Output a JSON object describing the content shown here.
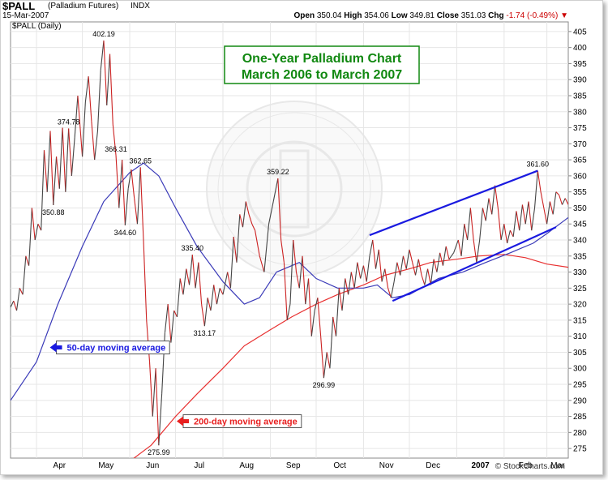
{
  "header": {
    "symbol": "$PALL",
    "description": "(Palladium Futures)",
    "exchange": "INDX",
    "date": "15-Mar-2007",
    "open_label": "Open",
    "open": "350.04",
    "high_label": "High",
    "high": "354.06",
    "low_label": "Low",
    "low": "349.81",
    "close_label": "Close",
    "close": "351.03",
    "chg_label": "Chg",
    "chg": "-1.74 (-0.49%)",
    "chg_color": "#cc0000"
  },
  "colors": {
    "price": "#cc2222",
    "price_up": "#444444",
    "ma50": "#3a3ab8",
    "ma200": "#e83030",
    "trend": "#1a1ae0",
    "title_text": "#118811",
    "title_border": "#118811"
  },
  "chart_data": {
    "type": "line",
    "plot_label": "$PALL (Daily)",
    "title_lines": [
      "One-Year Palladium Chart",
      "March 2006 to March 2007"
    ],
    "watermark": "© StockCharts.com",
    "x_labels": [
      "Apr",
      "May",
      "Jun",
      "Jul",
      "Aug",
      "Sep",
      "Oct",
      "Nov",
      "Dec",
      "2007",
      "Feb",
      "Mar"
    ],
    "x_labels_bold": [
      "2007"
    ],
    "y_ticks": [
      275,
      280,
      285,
      290,
      295,
      300,
      305,
      310,
      315,
      320,
      325,
      330,
      335,
      340,
      345,
      350,
      355,
      360,
      365,
      370,
      375,
      380,
      385,
      390,
      395,
      400,
      405
    ],
    "ylim": [
      272,
      408
    ],
    "x_range": [
      "2006-03-15",
      "2007-03-15"
    ],
    "grid": true,
    "price_path": [
      [
        "2006-03-15",
        319
      ],
      [
        "2006-03-17",
        321
      ],
      [
        "2006-03-19",
        318
      ],
      [
        "2006-03-21",
        325
      ],
      [
        "2006-03-23",
        323
      ],
      [
        "2006-03-25",
        335
      ],
      [
        "2006-03-27",
        332
      ],
      [
        "2006-03-29",
        350
      ],
      [
        "2006-03-31",
        340
      ],
      [
        "2006-04-02",
        345
      ],
      [
        "2006-04-04",
        343
      ],
      [
        "2006-04-06",
        368
      ],
      [
        "2006-04-08",
        355
      ],
      [
        "2006-04-10",
        374
      ],
      [
        "2006-04-12",
        350.88
      ],
      [
        "2006-04-14",
        366
      ],
      [
        "2006-04-16",
        356
      ],
      [
        "2006-04-18",
        375
      ],
      [
        "2006-04-20",
        355
      ],
      [
        "2006-04-22",
        374.78
      ],
      [
        "2006-04-24",
        360
      ],
      [
        "2006-04-26",
        372
      ],
      [
        "2006-04-28",
        385
      ],
      [
        "2006-05-01",
        366
      ],
      [
        "2006-05-03",
        383
      ],
      [
        "2006-05-05",
        391
      ],
      [
        "2006-05-07",
        377
      ],
      [
        "2006-05-09",
        365
      ],
      [
        "2006-05-11",
        374
      ],
      [
        "2006-05-13",
        393
      ],
      [
        "2006-05-15",
        402.19
      ],
      [
        "2006-05-17",
        382
      ],
      [
        "2006-05-19",
        398
      ],
      [
        "2006-05-21",
        376
      ],
      [
        "2006-05-23",
        366.31
      ],
      [
        "2006-05-25",
        350
      ],
      [
        "2006-05-27",
        365
      ],
      [
        "2006-05-29",
        344.6
      ],
      [
        "2006-05-31",
        356
      ],
      [
        "2006-06-02",
        362
      ],
      [
        "2006-06-04",
        353
      ],
      [
        "2006-06-06",
        345
      ],
      [
        "2006-06-08",
        362.65
      ],
      [
        "2006-06-10",
        340
      ],
      [
        "2006-06-12",
        315
      ],
      [
        "2006-06-14",
        302
      ],
      [
        "2006-06-16",
        285
      ],
      [
        "2006-06-18",
        300
      ],
      [
        "2006-06-20",
        275.99
      ],
      [
        "2006-06-22",
        292
      ],
      [
        "2006-06-24",
        311
      ],
      [
        "2006-06-26",
        320
      ],
      [
        "2006-06-28",
        308
      ],
      [
        "2006-06-30",
        318
      ],
      [
        "2006-07-02",
        316
      ],
      [
        "2006-07-04",
        328
      ],
      [
        "2006-07-06",
        323
      ],
      [
        "2006-07-08",
        331
      ],
      [
        "2006-07-10",
        326
      ],
      [
        "2006-07-12",
        335.4
      ],
      [
        "2006-07-14",
        325
      ],
      [
        "2006-07-16",
        333
      ],
      [
        "2006-07-18",
        320
      ],
      [
        "2006-07-20",
        313.17
      ],
      [
        "2006-07-22",
        322
      ],
      [
        "2006-07-24",
        318
      ],
      [
        "2006-07-26",
        326
      ],
      [
        "2006-07-28",
        320
      ],
      [
        "2006-07-30",
        325
      ],
      [
        "2006-08-01",
        323
      ],
      [
        "2006-08-04",
        330
      ],
      [
        "2006-08-06",
        325
      ],
      [
        "2006-08-08",
        341
      ],
      [
        "2006-08-10",
        333
      ],
      [
        "2006-08-12",
        348
      ],
      [
        "2006-08-14",
        344
      ],
      [
        "2006-08-16",
        352
      ],
      [
        "2006-08-18",
        348
      ],
      [
        "2006-08-20",
        345
      ],
      [
        "2006-08-22",
        343
      ],
      [
        "2006-08-25",
        335
      ],
      [
        "2006-08-28",
        330
      ],
      [
        "2006-08-31",
        345
      ],
      [
        "2006-09-03",
        352
      ],
      [
        "2006-09-06",
        359.22
      ],
      [
        "2006-09-08",
        340
      ],
      [
        "2006-09-10",
        333
      ],
      [
        "2006-09-12",
        315
      ],
      [
        "2006-09-14",
        320
      ],
      [
        "2006-09-16",
        340
      ],
      [
        "2006-09-18",
        330
      ],
      [
        "2006-09-20",
        325
      ],
      [
        "2006-09-22",
        335
      ],
      [
        "2006-09-24",
        320
      ],
      [
        "2006-09-26",
        328
      ],
      [
        "2006-09-28",
        310
      ],
      [
        "2006-09-30",
        318
      ],
      [
        "2006-10-02",
        322
      ],
      [
        "2006-10-04",
        310
      ],
      [
        "2006-10-06",
        296.99
      ],
      [
        "2006-10-08",
        305
      ],
      [
        "2006-10-10",
        300
      ],
      [
        "2006-10-12",
        316
      ],
      [
        "2006-10-14",
        310
      ],
      [
        "2006-10-16",
        325
      ],
      [
        "2006-10-18",
        318
      ],
      [
        "2006-10-20",
        328
      ],
      [
        "2006-10-22",
        323
      ],
      [
        "2006-10-24",
        330
      ],
      [
        "2006-10-26",
        325
      ],
      [
        "2006-10-28",
        333
      ],
      [
        "2006-10-30",
        328
      ],
      [
        "2006-11-01",
        332
      ],
      [
        "2006-11-03",
        327
      ],
      [
        "2006-11-05",
        335
      ],
      [
        "2006-11-07",
        340
      ],
      [
        "2006-11-09",
        331
      ],
      [
        "2006-11-11",
        337
      ],
      [
        "2006-11-13",
        327
      ],
      [
        "2006-11-15",
        331
      ],
      [
        "2006-11-17",
        325
      ],
      [
        "2006-11-19",
        322
      ],
      [
        "2006-11-21",
        327
      ],
      [
        "2006-11-23",
        333
      ],
      [
        "2006-11-25",
        329
      ],
      [
        "2006-11-27",
        335
      ],
      [
        "2006-11-29",
        331
      ],
      [
        "2006-12-01",
        337
      ],
      [
        "2006-12-03",
        333
      ],
      [
        "2006-12-05",
        329
      ],
      [
        "2006-12-07",
        334
      ],
      [
        "2006-12-09",
        329
      ],
      [
        "2006-12-11",
        326
      ],
      [
        "2006-12-13",
        331
      ],
      [
        "2006-12-15",
        326
      ],
      [
        "2006-12-17",
        334
      ],
      [
        "2006-12-19",
        330
      ],
      [
        "2006-12-21",
        336
      ],
      [
        "2006-12-23",
        332
      ],
      [
        "2006-12-25",
        338
      ],
      [
        "2006-12-27",
        334
      ],
      [
        "2006-12-30",
        336
      ],
      [
        "2007-01-02",
        340
      ],
      [
        "2007-01-04",
        335
      ],
      [
        "2007-01-06",
        345
      ],
      [
        "2007-01-08",
        340
      ],
      [
        "2007-01-10",
        350
      ],
      [
        "2007-01-12",
        340
      ],
      [
        "2007-01-14",
        333
      ],
      [
        "2007-01-16",
        340
      ],
      [
        "2007-01-18",
        350
      ],
      [
        "2007-01-20",
        346
      ],
      [
        "2007-01-22",
        353
      ],
      [
        "2007-01-24",
        348
      ],
      [
        "2007-01-26",
        357
      ],
      [
        "2007-01-28",
        350
      ],
      [
        "2007-01-30",
        340
      ],
      [
        "2007-02-01",
        345
      ],
      [
        "2007-02-03",
        339
      ],
      [
        "2007-02-05",
        343
      ],
      [
        "2007-02-07",
        341
      ],
      [
        "2007-02-09",
        349
      ],
      [
        "2007-02-11",
        343
      ],
      [
        "2007-02-13",
        351
      ],
      [
        "2007-02-15",
        345
      ],
      [
        "2007-02-17",
        352
      ],
      [
        "2007-02-19",
        343
      ],
      [
        "2007-02-21",
        350
      ],
      [
        "2007-02-23",
        361.6
      ],
      [
        "2007-02-25",
        355
      ],
      [
        "2007-02-27",
        350
      ],
      [
        "2007-03-01",
        345
      ],
      [
        "2007-03-03",
        352
      ],
      [
        "2007-03-05",
        348
      ],
      [
        "2007-03-07",
        355
      ],
      [
        "2007-03-09",
        354
      ],
      [
        "2007-03-11",
        351
      ],
      [
        "2007-03-13",
        353
      ],
      [
        "2007-03-15",
        351.03
      ]
    ],
    "ma50_path": [
      [
        "2006-03-15",
        290
      ],
      [
        "2006-04-01",
        302
      ],
      [
        "2006-04-15",
        320
      ],
      [
        "2006-05-01",
        338
      ],
      [
        "2006-05-15",
        352
      ],
      [
        "2006-06-01",
        361
      ],
      [
        "2006-06-10",
        364
      ],
      [
        "2006-06-20",
        360
      ],
      [
        "2006-07-01",
        350
      ],
      [
        "2006-07-15",
        338
      ],
      [
        "2006-08-01",
        327
      ],
      [
        "2006-08-15",
        320
      ],
      [
        "2006-08-25",
        322
      ],
      [
        "2006-09-05",
        330
      ],
      [
        "2006-09-20",
        333
      ],
      [
        "2006-10-01",
        328
      ],
      [
        "2006-10-15",
        325
      ],
      [
        "2006-11-01",
        325
      ],
      [
        "2006-11-10",
        326
      ],
      [
        "2006-11-20",
        322
      ],
      [
        "2006-12-01",
        323
      ],
      [
        "2006-12-20",
        328
      ],
      [
        "2007-01-05",
        330
      ],
      [
        "2007-01-20",
        333
      ],
      [
        "2007-02-05",
        336
      ],
      [
        "2007-02-20",
        339
      ],
      [
        "2007-03-01",
        342
      ],
      [
        "2007-03-15",
        347
      ]
    ],
    "ma200_path": [
      [
        "2006-06-01",
        271
      ],
      [
        "2006-06-15",
        276
      ],
      [
        "2006-07-01",
        285
      ],
      [
        "2006-07-15",
        292
      ],
      [
        "2006-08-01",
        300
      ],
      [
        "2006-08-15",
        307
      ],
      [
        "2006-09-01",
        312
      ],
      [
        "2006-09-15",
        316
      ],
      [
        "2006-10-01",
        320
      ],
      [
        "2006-10-15",
        323
      ],
      [
        "2006-11-01",
        326
      ],
      [
        "2006-11-15",
        329
      ],
      [
        "2006-12-01",
        331
      ],
      [
        "2006-12-15",
        333
      ],
      [
        "2007-01-01",
        334
      ],
      [
        "2007-01-15",
        335
      ],
      [
        "2007-02-01",
        335.5
      ],
      [
        "2007-02-15",
        334.5
      ],
      [
        "2007-03-01",
        332.5
      ],
      [
        "2007-03-15",
        331.5
      ]
    ],
    "peak_labels": [
      {
        "date": "2006-04-12",
        "value": 350.88,
        "text": "350.88",
        "pos": "below"
      },
      {
        "date": "2006-04-22",
        "value": 374.78,
        "text": "374.78",
        "pos": "above"
      },
      {
        "date": "2006-05-15",
        "value": 402.19,
        "text": "402.19",
        "pos": "above"
      },
      {
        "date": "2006-05-23",
        "value": 366.31,
        "text": "366.31",
        "pos": "above"
      },
      {
        "date": "2006-05-29",
        "value": 344.6,
        "text": "344.60",
        "pos": "below"
      },
      {
        "date": "2006-06-08",
        "value": 362.65,
        "text": "362.65",
        "pos": "above"
      },
      {
        "date": "2006-06-20",
        "value": 275.99,
        "text": "275.99",
        "pos": "below"
      },
      {
        "date": "2006-07-12",
        "value": 335.4,
        "text": "335.40",
        "pos": "above"
      },
      {
        "date": "2006-07-20",
        "value": 313.17,
        "text": "313.17",
        "pos": "below"
      },
      {
        "date": "2006-09-06",
        "value": 359.22,
        "text": "359.22",
        "pos": "above"
      },
      {
        "date": "2006-10-06",
        "value": 296.99,
        "text": "296.99",
        "pos": "below"
      },
      {
        "date": "2007-02-23",
        "value": 361.6,
        "text": "361.60",
        "pos": "above"
      }
    ],
    "trendlines": [
      {
        "from": [
          "2006-11-05",
          341.5
        ],
        "to": [
          "2007-02-23",
          361.6
        ]
      },
      {
        "from": [
          "2006-11-20",
          321
        ],
        "to": [
          "2007-03-07",
          344
        ]
      }
    ],
    "annotations": [
      {
        "text": "50-day moving average",
        "color": "#1a1ae0",
        "at": [
          "2006-04-14",
          306.5
        ]
      },
      {
        "text": "200-day moving average",
        "color": "#e82020",
        "at": [
          "2006-07-06",
          283.5
        ]
      }
    ]
  }
}
